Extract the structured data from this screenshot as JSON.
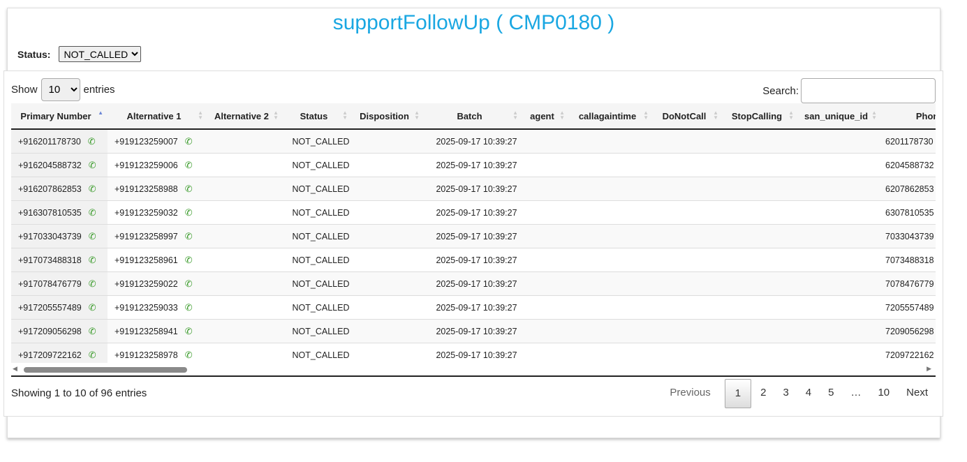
{
  "title": "supportFollowUp ( CMP0180 )",
  "status_filter": {
    "label": "Status:",
    "value": "NOT_CALLED"
  },
  "length": {
    "show": "Show",
    "value": "10",
    "entries": "entries"
  },
  "search": {
    "label": "Search:",
    "value": ""
  },
  "columns": [
    "Primary Number",
    "Alternative 1",
    "Alternative 2",
    "Status",
    "Disposition",
    "Batch",
    "agent",
    "callagaintime",
    "DoNotCall",
    "StopCalling",
    "san_unique_id",
    "Phone_No"
  ],
  "sorted_column": "Primary Number",
  "rows": [
    [
      "+916201178730",
      "+919123259007",
      "",
      "NOT_CALLED",
      "",
      "2025-09-17 10:39:27",
      "",
      "",
      "",
      "",
      "",
      "6201178730"
    ],
    [
      "+916204588732",
      "+919123259006",
      "",
      "NOT_CALLED",
      "",
      "2025-09-17 10:39:27",
      "",
      "",
      "",
      "",
      "",
      "6204588732"
    ],
    [
      "+916207862853",
      "+919123258988",
      "",
      "NOT_CALLED",
      "",
      "2025-09-17 10:39:27",
      "",
      "",
      "",
      "",
      "",
      "6207862853"
    ],
    [
      "+916307810535",
      "+919123259032",
      "",
      "NOT_CALLED",
      "",
      "2025-09-17 10:39:27",
      "",
      "",
      "",
      "",
      "",
      "6307810535"
    ],
    [
      "+917033043739",
      "+919123258997",
      "",
      "NOT_CALLED",
      "",
      "2025-09-17 10:39:27",
      "",
      "",
      "",
      "",
      "",
      "7033043739"
    ],
    [
      "+917073488318",
      "+919123258961",
      "",
      "NOT_CALLED",
      "",
      "2025-09-17 10:39:27",
      "",
      "",
      "",
      "",
      "",
      "7073488318"
    ],
    [
      "+917078476779",
      "+919123259022",
      "",
      "NOT_CALLED",
      "",
      "2025-09-17 10:39:27",
      "",
      "",
      "",
      "",
      "",
      "7078476779"
    ],
    [
      "+917205557489",
      "+919123259033",
      "",
      "NOT_CALLED",
      "",
      "2025-09-17 10:39:27",
      "",
      "",
      "",
      "",
      "",
      "7205557489"
    ],
    [
      "+917209056298",
      "+919123258941",
      "",
      "NOT_CALLED",
      "",
      "2025-09-17 10:39:27",
      "",
      "",
      "",
      "",
      "",
      "7209056298"
    ],
    [
      "+917209722162",
      "+919123258978",
      "",
      "NOT_CALLED",
      "",
      "2025-09-17 10:39:27",
      "",
      "",
      "",
      "",
      "",
      "7209722162"
    ]
  ],
  "info": "Showing 1 to 10 of 96 entries",
  "pagination": {
    "previous": "Previous",
    "pages": [
      "1",
      "2",
      "3",
      "4",
      "5",
      "…",
      "10"
    ],
    "current": "1",
    "next": "Next"
  },
  "colors": {
    "title": "#1aa7e2",
    "phone_icon": "#3a9b2a"
  },
  "icons": {
    "phone": "phone-icon",
    "sort": "sort-arrows-icon"
  }
}
